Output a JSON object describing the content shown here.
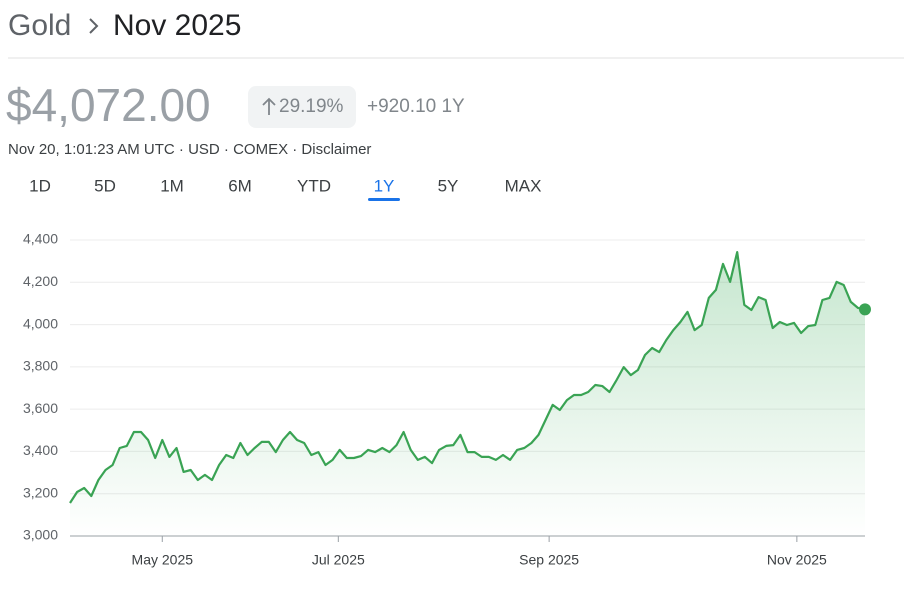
{
  "header": {
    "breadcrumb": "Gold",
    "title": "Nov 2025"
  },
  "quote": {
    "price": "$4,072.00",
    "change_percent": "29.19%",
    "change_abs": "+920.10 1Y",
    "meta": "Nov 20, 1:01:23 AM UTC · USD · COMEX · Disclaimer"
  },
  "tabs": {
    "items": [
      "1D",
      "5D",
      "1M",
      "6M",
      "YTD",
      "1Y",
      "5Y",
      "MAX"
    ],
    "active": 5
  },
  "chart_data": {
    "type": "area-line",
    "color": "#3aa354",
    "grid": true,
    "values": [
      3156,
      3208,
      3227,
      3189,
      3265,
      3312,
      3336,
      3416,
      3426,
      3492,
      3492,
      3454,
      3369,
      3454,
      3374,
      3416,
      3303,
      3312,
      3265,
      3289,
      3265,
      3336,
      3383,
      3369,
      3440,
      3383,
      3416,
      3445,
      3445,
      3397,
      3454,
      3492,
      3454,
      3440,
      3383,
      3397,
      3336,
      3360,
      3407,
      3369,
      3369,
      3378,
      3407,
      3397,
      3416,
      3397,
      3430,
      3492,
      3407,
      3360,
      3374,
      3345,
      3407,
      3426,
      3430,
      3478,
      3397,
      3397,
      3374,
      3374,
      3360,
      3383,
      3360,
      3407,
      3416,
      3440,
      3478,
      3549,
      3620,
      3596,
      3643,
      3667,
      3667,
      3681,
      3714,
      3709,
      3681,
      3738,
      3799,
      3761,
      3785,
      3856,
      3889,
      3870,
      3927,
      3974,
      4012,
      4060,
      3974,
      3998,
      4126,
      4164,
      4287,
      4202,
      4343,
      4093,
      4069,
      4130,
      4116,
      3984,
      4012,
      3998,
      4008,
      3960,
      3993,
      3998,
      4116,
      4126,
      4202,
      4187,
      4107,
      4079,
      4072
    ],
    "xlim": [
      0,
      112
    ],
    "xticks": [
      {
        "value": 13,
        "label": "May 2025"
      },
      {
        "value": 37.8,
        "label": "Jul 2025"
      },
      {
        "value": 67.5,
        "label": "Sep 2025"
      },
      {
        "value": 102.4,
        "label": "Nov 2025"
      }
    ],
    "ylim": [
      3000,
      4400
    ],
    "yticks": [
      {
        "value": 3000,
        "label": "3,000"
      },
      {
        "value": 3200,
        "label": "3,200"
      },
      {
        "value": 3400,
        "label": "3,400"
      },
      {
        "value": 3600,
        "label": "3,600"
      },
      {
        "value": 3800,
        "label": "3,800"
      },
      {
        "value": 4000,
        "label": "4,000"
      },
      {
        "value": 4200,
        "label": "4,200"
      },
      {
        "value": 4400,
        "label": "4,400"
      }
    ]
  }
}
